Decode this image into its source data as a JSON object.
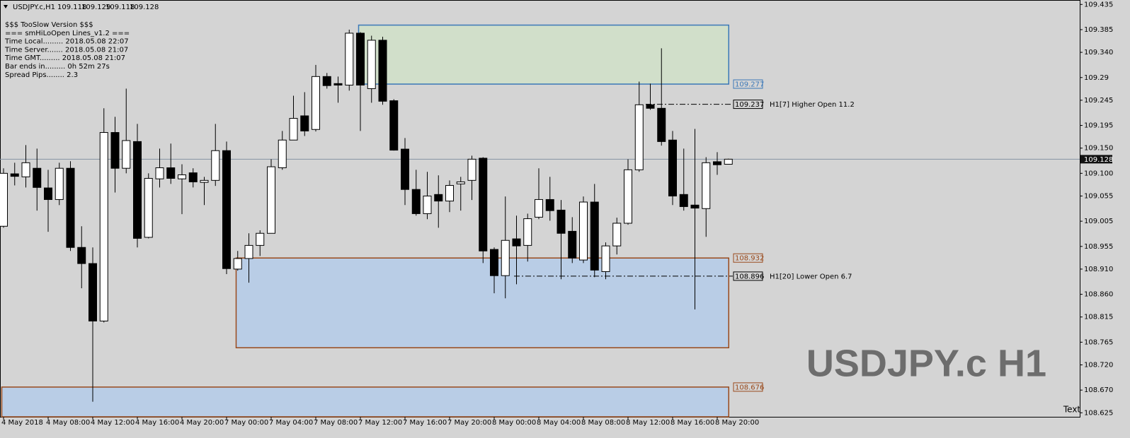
{
  "chart_data": {
    "type": "candlestick",
    "symbol": "USDJPY.c,H1",
    "info": [
      "$$$ TooSlow Version $$$",
      "=== smHiLoOpen Lines_v1.2 ===",
      "Time Local......... 2018.05.08 22:07",
      "Time Server....... 2018.05.08 21:07",
      "Time GMT......... 2018.05.08 21:07",
      "Bar ends in......... 0h 52m 27s",
      "Spread Pips........ 2.3"
    ],
    "watermark": "USDJPY.c H1",
    "corner_label": "Text",
    "categories": [
      "4 May 2018",
      null,
      null,
      null,
      "4 May 08:00",
      null,
      null,
      null,
      "4 May 12:00",
      null,
      null,
      null,
      "4 May 16:00",
      null,
      null,
      null,
      "4 May 20:00",
      null,
      null,
      null,
      "7 May 00:00",
      null,
      null,
      null,
      "7 May 04:00",
      null,
      null,
      null,
      "7 May 08:00",
      null,
      null,
      null,
      "7 May 12:00",
      null,
      null,
      null,
      "7 May 16:00",
      null,
      null,
      null,
      "7 May 20:00",
      null,
      null,
      null,
      "8 May 00:00",
      null,
      null,
      null,
      "8 May 04:00",
      null,
      null,
      null,
      "8 May 08:00",
      null,
      null,
      null,
      "8 May 12:00",
      null,
      null,
      null,
      "8 May 16:00",
      null,
      null,
      null,
      "8 May 20:00",
      null
    ],
    "open": [
      108.995,
      109.099,
      109.093,
      109.11,
      109.071,
      109.048,
      109.11,
      108.953,
      108.921,
      108.807,
      109.181,
      109.11,
      109.163,
      108.973,
      109.089,
      109.111,
      109.089,
      109.101,
      109.082,
      109.086,
      109.145,
      108.91,
      108.931,
      108.957,
      108.981,
      109.111,
      109.166,
      109.214,
      109.187,
      109.292,
      109.278,
      109.275,
      109.378,
      109.268,
      109.364,
      109.244,
      109.148,
      109.068,
      109.02,
      109.058,
      109.045,
      109.079,
      109.086,
      109.13,
      108.949,
      108.897,
      108.97,
      108.957,
      109.013,
      109.048,
      109.027,
      108.985,
      108.928,
      109.043,
      108.905,
      108.956,
      109.001,
      109.107,
      109.236,
      109.229,
      109.166,
      109.058,
      109.037,
      109.03,
      109.123,
      109.118
    ],
    "high": [
      109.11,
      109.121,
      109.156,
      109.149,
      109.107,
      109.121,
      109.124,
      108.995,
      108.953,
      109.229,
      109.212,
      109.268,
      109.198,
      109.1,
      109.149,
      109.159,
      109.118,
      109.11,
      109.093,
      109.198,
      109.163,
      108.946,
      108.981,
      108.987,
      109.128,
      109.184,
      109.254,
      109.261,
      109.315,
      109.299,
      109.292,
      109.385,
      109.38,
      109.373,
      109.371,
      109.247,
      109.17,
      109.107,
      109.103,
      109.096,
      109.086,
      109.093,
      109.135,
      109.132,
      108.953,
      109.054,
      109.016,
      109.02,
      109.11,
      109.093,
      109.047,
      109.013,
      109.054,
      109.079,
      108.963,
      109.012,
      109.128,
      109.282,
      109.278,
      109.348,
      109.184,
      109.149,
      109.188,
      109.132,
      109.142,
      109.129
    ],
    "low": [
      108.992,
      109.076,
      109.072,
      109.026,
      108.984,
      109.037,
      108.946,
      108.872,
      108.647,
      108.804,
      109.062,
      109.1,
      108.953,
      108.971,
      109.072,
      109.079,
      109.019,
      109.072,
      109.037,
      109.075,
      108.9,
      108.907,
      108.883,
      108.936,
      108.981,
      109.107,
      109.166,
      109.174,
      109.183,
      109.268,
      109.24,
      109.264,
      109.184,
      109.24,
      109.236,
      109.145,
      109.037,
      109.016,
      109.009,
      108.992,
      109.023,
      109.026,
      109.047,
      108.922,
      108.862,
      108.852,
      108.88,
      108.925,
      109.009,
      109.006,
      108.89,
      108.922,
      108.922,
      108.894,
      108.89,
      108.939,
      108.998,
      109.103,
      109.226,
      109.155,
      109.037,
      109.026,
      108.83,
      108.974,
      109.097,
      109.118
    ],
    "close": [
      109.1,
      109.094,
      109.121,
      109.072,
      109.048,
      109.11,
      108.953,
      108.921,
      108.807,
      109.181,
      109.11,
      109.165,
      108.971,
      109.09,
      109.111,
      109.09,
      109.097,
      109.083,
      109.086,
      109.145,
      108.911,
      108.931,
      108.957,
      108.981,
      109.113,
      109.166,
      109.209,
      109.184,
      109.292,
      109.274,
      109.275,
      109.378,
      109.275,
      109.364,
      109.243,
      109.146,
      109.068,
      109.02,
      109.055,
      109.045,
      109.076,
      109.083,
      109.128,
      108.946,
      108.897,
      108.967,
      108.956,
      109.01,
      109.048,
      109.026,
      108.981,
      108.932,
      109.043,
      108.908,
      108.956,
      109.001,
      109.107,
      109.236,
      109.229,
      109.163,
      109.055,
      109.034,
      109.031,
      109.121,
      109.117,
      109.128
    ],
    "up_color": "#ffffff",
    "down_color": "#000000",
    "wick_color": "#000000",
    "current_price": 109.128,
    "zones": [
      {
        "top": 109.394,
        "bottom": 109.277,
        "label": 109.277,
        "fill": "#d1dfca",
        "stroke": "#3b78b8"
      },
      {
        "top": 108.932,
        "bottom": 108.754,
        "label": 108.932,
        "fill": "#b9cde6",
        "stroke": "#9a4a1c"
      },
      {
        "top": 108.676,
        "bottom": 108.617,
        "label": 108.676,
        "fill": "#b9cde6",
        "stroke": "#9a4a1c"
      }
    ],
    "levels": [
      {
        "value": 109.237,
        "text": "H1[7] Higher Open 11.2"
      },
      {
        "value": 108.896,
        "text": "H1[20] Lower Open 6.7"
      }
    ],
    "ylim": [
      108.617,
      109.441
    ],
    "yticks": [
      109.435,
      109.385,
      {
        "value": 109.34,
        "label": "109.340"
      },
      109.29,
      109.245,
      109.195,
      {
        "value": 109.15,
        "label": "109.150"
      },
      {
        "value": 109.1,
        "label": "109.100"
      },
      109.055,
      109.005,
      108.955,
      {
        "value": 108.91,
        "label": "108.910"
      },
      {
        "value": 108.86,
        "label": "108.860"
      },
      108.815,
      108.765,
      {
        "value": 108.72,
        "label": "108.720"
      },
      {
        "value": 108.67,
        "label": "108.670"
      },
      108.625
    ]
  }
}
